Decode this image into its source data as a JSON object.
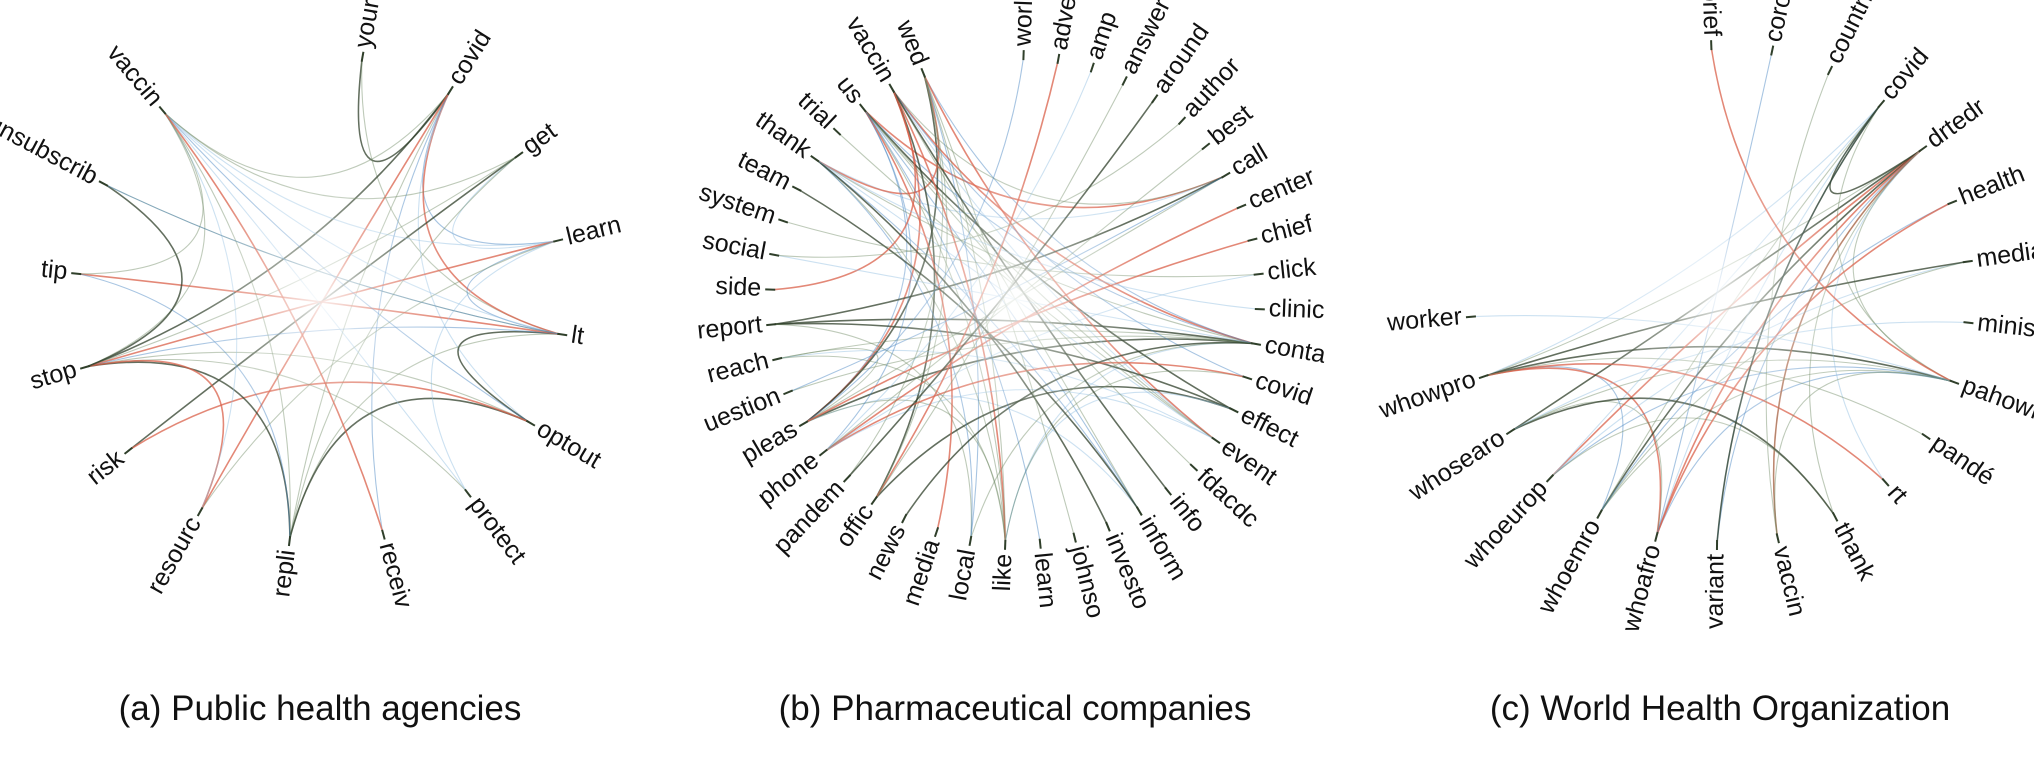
{
  "colors": {
    "strong_edge": "#2f3f2a",
    "mid_edge": "#6f8a63",
    "blue_edge": "#3f7fbf",
    "red_edge": "#d9604a",
    "light_blue": "#8fbde0"
  },
  "panels": [
    {
      "caption": "(a) Public health agencies",
      "nodes": [
        "your",
        "covid",
        "get",
        "learn",
        "lt",
        "optout",
        "protect",
        "receiv",
        "repli",
        "resourc",
        "risk",
        "stop",
        "tip",
        "unsubscrib",
        "vaccin"
      ],
      "edges": [
        [
          0,
          1
        ],
        [
          0,
          4
        ],
        [
          1,
          3
        ],
        [
          1,
          4
        ],
        [
          1,
          5
        ],
        [
          1,
          8
        ],
        [
          1,
          11
        ],
        [
          1,
          14
        ],
        [
          1,
          7
        ],
        [
          1,
          9
        ],
        [
          2,
          3
        ],
        [
          2,
          8
        ],
        [
          2,
          10
        ],
        [
          2,
          11
        ],
        [
          3,
          4
        ],
        [
          3,
          11
        ],
        [
          3,
          14
        ],
        [
          3,
          9
        ],
        [
          4,
          5
        ],
        [
          4,
          8
        ],
        [
          4,
          11
        ],
        [
          4,
          12
        ],
        [
          4,
          14
        ],
        [
          4,
          13
        ],
        [
          5,
          8
        ],
        [
          5,
          11
        ],
        [
          5,
          14
        ],
        [
          5,
          10
        ],
        [
          6,
          14
        ],
        [
          6,
          11
        ],
        [
          8,
          11
        ],
        [
          8,
          14
        ],
        [
          8,
          12
        ],
        [
          9,
          11
        ],
        [
          9,
          14
        ],
        [
          11,
          14
        ],
        [
          11,
          13
        ],
        [
          12,
          14
        ],
        [
          13,
          4
        ],
        [
          7,
          14
        ],
        [
          6,
          3
        ],
        [
          2,
          14
        ]
      ]
    },
    {
      "caption": "(b) Pharmaceutical companies",
      "nodes": [
        "world",
        "adver",
        "amp",
        "answer",
        "around",
        "author",
        "best",
        "call",
        "center",
        "chief",
        "click",
        "clinic",
        "conta",
        "covid",
        "effect",
        "event",
        "fdacdc",
        "info",
        "inform",
        "investo",
        "johnso",
        "learn",
        "like",
        "local",
        "media",
        "news",
        "offic",
        "pandem",
        "phone",
        "pleas",
        "uestion",
        "reach",
        "report",
        "side",
        "social",
        "system",
        "team",
        "thank",
        "trial",
        "us",
        "vaccin",
        "wed"
      ],
      "edges": [
        [
          29,
          12
        ],
        [
          29,
          7
        ],
        [
          29,
          39
        ],
        [
          29,
          40
        ],
        [
          29,
          18
        ],
        [
          29,
          22
        ],
        [
          29,
          41
        ],
        [
          29,
          31
        ],
        [
          12,
          39
        ],
        [
          12,
          40
        ],
        [
          12,
          22
        ],
        [
          12,
          31
        ],
        [
          12,
          32
        ],
        [
          12,
          37
        ],
        [
          12,
          41
        ],
        [
          7,
          39
        ],
        [
          7,
          37
        ],
        [
          7,
          40
        ],
        [
          7,
          32
        ],
        [
          37,
          22
        ],
        [
          37,
          18
        ],
        [
          37,
          41
        ],
        [
          37,
          15
        ],
        [
          39,
          22
        ],
        [
          39,
          14
        ],
        [
          39,
          15
        ],
        [
          39,
          18
        ],
        [
          40,
          22
        ],
        [
          40,
          15
        ],
        [
          40,
          18
        ],
        [
          40,
          26
        ],
        [
          41,
          22
        ],
        [
          41,
          23
        ],
        [
          41,
          15
        ],
        [
          31,
          15
        ],
        [
          31,
          22
        ],
        [
          32,
          14
        ],
        [
          32,
          23
        ],
        [
          28,
          39
        ],
        [
          28,
          8
        ],
        [
          28,
          10
        ],
        [
          26,
          41
        ],
        [
          26,
          14
        ],
        [
          23,
          12
        ],
        [
          23,
          37
        ],
        [
          24,
          39
        ],
        [
          22,
          14
        ],
        [
          22,
          13
        ],
        [
          36,
          18
        ],
        [
          35,
          10
        ],
        [
          13,
          40
        ],
        [
          13,
          28
        ],
        [
          15,
          28
        ],
        [
          16,
          39
        ],
        [
          17,
          40
        ],
        [
          30,
          12
        ],
        [
          30,
          7
        ],
        [
          33,
          40
        ],
        [
          34,
          12
        ],
        [
          38,
          15
        ],
        [
          25,
          12
        ],
        [
          27,
          41
        ],
        [
          0,
          29
        ],
        [
          1,
          26
        ],
        [
          2,
          28
        ],
        [
          5,
          34
        ],
        [
          19,
          37
        ],
        [
          20,
          41
        ],
        [
          21,
          39
        ],
        [
          9,
          29
        ],
        [
          11,
          37
        ],
        [
          3,
          26
        ],
        [
          4,
          27
        ],
        [
          6,
          28
        ]
      ]
    },
    {
      "caption": "(c) World Health Organization",
      "nodes": [
        "brief",
        "coronavir",
        "countri",
        "covid",
        "drtedr",
        "health",
        "media",
        "minist",
        "pahowho",
        "pandé",
        "rt",
        "thank",
        "vaccin",
        "variant",
        "whoafro",
        "whoemro",
        "whoeurop",
        "whosearo",
        "whowpro",
        "worker"
      ],
      "edges": [
        [
          18,
          8
        ],
        [
          18,
          4
        ],
        [
          18,
          15
        ],
        [
          18,
          14
        ],
        [
          18,
          3
        ],
        [
          17,
          8
        ],
        [
          17,
          4
        ],
        [
          17,
          14
        ],
        [
          16,
          8
        ],
        [
          16,
          4
        ],
        [
          16,
          3
        ],
        [
          15,
          8
        ],
        [
          15,
          4
        ],
        [
          15,
          3
        ],
        [
          14,
          8
        ],
        [
          14,
          4
        ],
        [
          14,
          3
        ],
        [
          4,
          8
        ],
        [
          4,
          3
        ],
        [
          4,
          11
        ],
        [
          4,
          13
        ],
        [
          4,
          12
        ],
        [
          6,
          16
        ],
        [
          6,
          15
        ],
        [
          6,
          18
        ],
        [
          3,
          8
        ],
        [
          3,
          13
        ],
        [
          10,
          18
        ],
        [
          10,
          4
        ],
        [
          11,
          16
        ],
        [
          11,
          17
        ],
        [
          9,
          18
        ],
        [
          5,
          15
        ],
        [
          5,
          14
        ],
        [
          7,
          17
        ],
        [
          12,
          4
        ],
        [
          13,
          3
        ],
        [
          2,
          12
        ],
        [
          1,
          14
        ],
        [
          0,
          8
        ],
        [
          19,
          8
        ],
        [
          8,
          12
        ]
      ]
    }
  ]
}
